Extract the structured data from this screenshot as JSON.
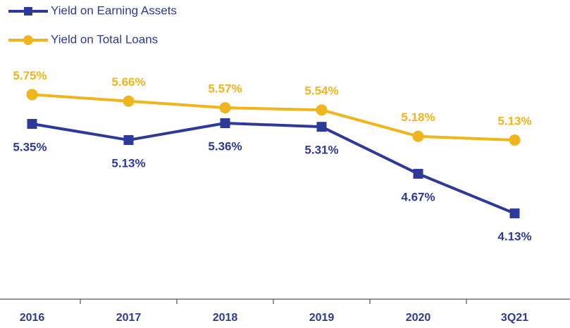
{
  "chart_data": {
    "type": "line",
    "categories": [
      "2016",
      "2017",
      "2018",
      "2019",
      "2020",
      "3Q21"
    ],
    "series": [
      {
        "name": "Yield on Earning Assets",
        "color": "#2e3a97",
        "marker": "square",
        "values": [
          5.35,
          5.13,
          5.36,
          5.31,
          4.67,
          4.13
        ],
        "value_labels": [
          "5.35%",
          "5.13%",
          "5.36%",
          "5.31%",
          "4.67%",
          "4.13%"
        ]
      },
      {
        "name": "Yield on Total Loans",
        "color": "#f0b41c",
        "marker": "circle",
        "values": [
          5.75,
          5.66,
          5.57,
          5.54,
          5.18,
          5.13
        ],
        "value_labels": [
          "5.75%",
          "5.66%",
          "5.57%",
          "5.54%",
          "5.18%",
          "5.13%"
        ]
      }
    ],
    "ylim": [
      3,
      7
    ],
    "legend": "top-left"
  }
}
